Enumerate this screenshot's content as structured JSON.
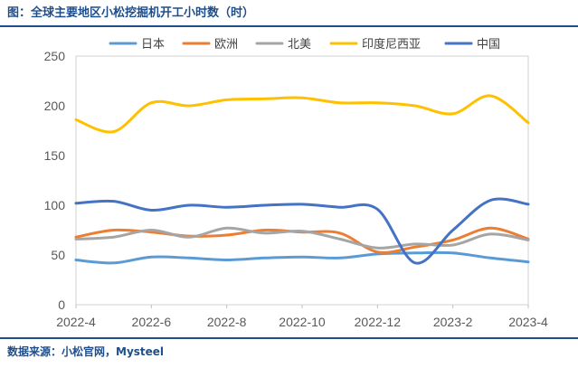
{
  "title": "图：全球主要地区小松挖掘机开工小时数（时）",
  "source": "数据来源：小松官网，Mysteel",
  "chart_data": {
    "type": "line",
    "x": [
      "2022-4",
      "2022-5",
      "2022-6",
      "2022-7",
      "2022-8",
      "2022-9",
      "2022-10",
      "2022-11",
      "2022-12",
      "2023-1",
      "2023-2",
      "2023-3",
      "2023-4"
    ],
    "x_tick_labels": [
      "2022-4",
      "2022-6",
      "2022-8",
      "2022-10",
      "2022-12",
      "2023-2",
      "2023-4"
    ],
    "ylim": [
      0,
      250
    ],
    "y_ticks": [
      0,
      50,
      100,
      150,
      200,
      250
    ],
    "grid": false,
    "legend": "top",
    "series": [
      {
        "name": "日本",
        "color": "#5b9bd5",
        "values": [
          45,
          42,
          48,
          47,
          45,
          47,
          48,
          47,
          51,
          52,
          52,
          47,
          43
        ]
      },
      {
        "name": "欧洲",
        "color": "#ed7d31",
        "values": [
          68,
          75,
          73,
          69,
          70,
          75,
          73,
          72,
          53,
          58,
          65,
          77,
          66
        ]
      },
      {
        "name": "北美",
        "color": "#a5a5a5",
        "values": [
          66,
          68,
          75,
          68,
          77,
          72,
          74,
          66,
          57,
          61,
          60,
          71,
          65
        ]
      },
      {
        "name": "印度尼西亚",
        "color": "#ffc000",
        "values": [
          186,
          174,
          203,
          200,
          206,
          207,
          208,
          203,
          203,
          200,
          192,
          210,
          183
        ]
      },
      {
        "name": "中国",
        "color": "#4472c4",
        "values": [
          102,
          104,
          95,
          100,
          98,
          100,
          101,
          98,
          96,
          42,
          75,
          105,
          101
        ]
      }
    ]
  }
}
